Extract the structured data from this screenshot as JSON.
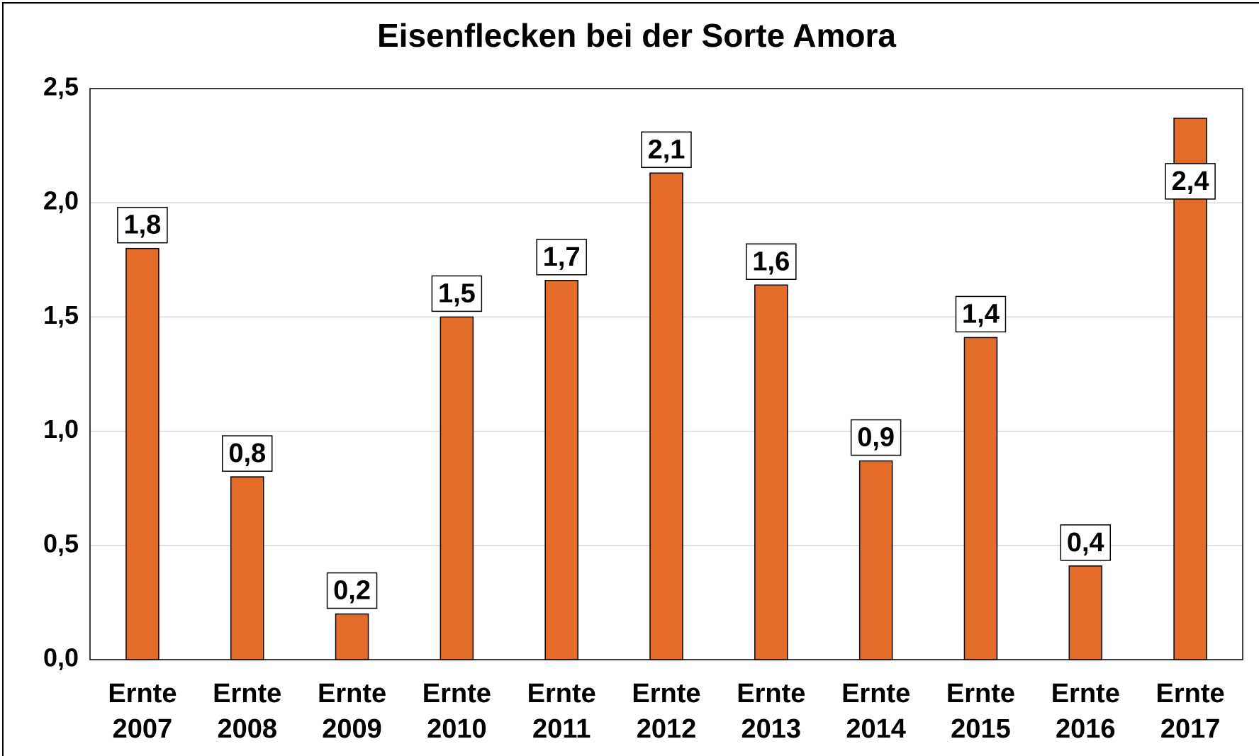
{
  "chart_data": {
    "type": "bar",
    "title": "Eisenflecken bei der Sorte Amora",
    "categories": [
      "Ernte 2007",
      "Ernte 2008",
      "Ernte 2009",
      "Ernte 2010",
      "Ernte 2011",
      "Ernte 2012",
      "Ernte 2013",
      "Ernte 2014",
      "Ernte 2015",
      "Ernte 2016",
      "Ernte 2017"
    ],
    "values": [
      1.8,
      0.8,
      0.2,
      1.5,
      1.66,
      2.13,
      1.64,
      0.87,
      1.41,
      0.41,
      2.37
    ],
    "value_labels": [
      "1,8",
      "0,8",
      "0,2",
      "1,5",
      "1,7",
      "2,1",
      "1,6",
      "0,9",
      "1,4",
      "0,4",
      "2,4"
    ],
    "color": "#e36c28",
    "ylim": [
      0,
      2.5
    ],
    "yticks": [
      {
        "value": 0,
        "label": "0,0"
      },
      {
        "value": 0.5,
        "label": "0,5"
      },
      {
        "value": 1,
        "label": "1,0"
      },
      {
        "value": 1.5,
        "label": "1,5"
      },
      {
        "value": 2,
        "label": "2,0"
      },
      {
        "value": 2.5,
        "label": "2,5"
      }
    ],
    "grid": true
  }
}
